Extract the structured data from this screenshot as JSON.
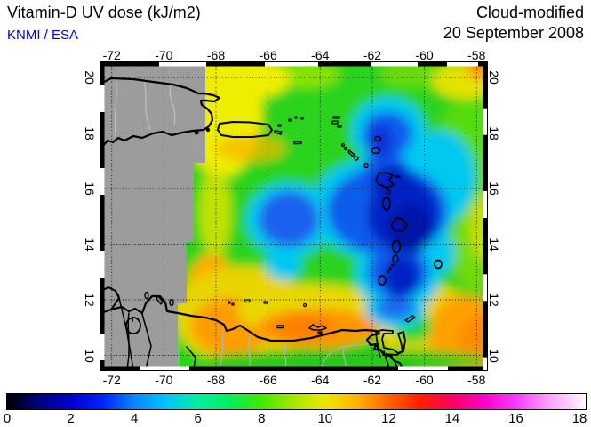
{
  "header": {
    "title": "Vitamin-D UV dose (kJ/m2)",
    "source": "KNMI / ESA",
    "mode": "Cloud-modified",
    "date": "20 September 2008"
  },
  "map": {
    "lon_labels": [
      "-72",
      "-70",
      "-68",
      "-66",
      "-64",
      "-62",
      "-60",
      "-58"
    ],
    "lat_labels": [
      "20",
      "18",
      "16",
      "14",
      "12",
      "10"
    ],
    "nodata_color": "#9c9c9c",
    "coast_color": "#000000",
    "river_color": "#b4b4b4",
    "grid_style": "dotted"
  },
  "colorbar": {
    "labels": [
      "0",
      "2",
      "4",
      "6",
      "8",
      "10",
      "12",
      "14",
      "16",
      "18"
    ],
    "min": 0,
    "max": 18,
    "stops": [
      {
        "value": 0,
        "color": "#000000"
      },
      {
        "value": 1,
        "color": "#000080"
      },
      {
        "value": 2,
        "color": "#0000cd"
      },
      {
        "value": 3,
        "color": "#0022ff"
      },
      {
        "value": 4,
        "color": "#0a86ff"
      },
      {
        "value": 5,
        "color": "#00c4ff"
      },
      {
        "value": 6,
        "color": "#00f0a0"
      },
      {
        "value": 7,
        "color": "#00f05c"
      },
      {
        "value": 8,
        "color": "#44e800"
      },
      {
        "value": 9,
        "color": "#a4e800"
      },
      {
        "value": 10,
        "color": "#ece800"
      },
      {
        "value": 11,
        "color": "#ffb400"
      },
      {
        "value": 12,
        "color": "#ff6400"
      },
      {
        "value": 13,
        "color": "#ff1e00"
      },
      {
        "value": 14,
        "color": "#ff0064"
      },
      {
        "value": 15,
        "color": "#ff00c8"
      },
      {
        "value": 16,
        "color": "#f53cff"
      },
      {
        "value": 17,
        "color": "#ff9cff"
      },
      {
        "value": 18,
        "color": "#ffe8ff"
      }
    ]
  },
  "chart_data": {
    "type": "heatmap",
    "title": "Vitamin-D UV dose (kJ/m2)",
    "subtitle": "Cloud-modified",
    "date": "20 September 2008",
    "units": "kJ/m2",
    "lon_range": [
      -72.4,
      -57.6
    ],
    "lat_range": [
      9.5,
      20.5
    ],
    "colorbar_range": [
      0,
      18
    ],
    "no_data_region": "west of approximately -68.4 longitude (gray)",
    "grid_lons": [
      -72,
      -70,
      -68,
      -66,
      -64,
      -62,
      -60,
      -58
    ],
    "grid_lats": [
      20,
      18,
      16,
      14,
      12,
      10
    ],
    "estimated_values_by_lat": [
      {
        "lat": 20,
        "values": [
          null,
          null,
          9,
          8,
          8,
          8,
          9,
          10
        ]
      },
      {
        "lat": 18,
        "values": [
          null,
          null,
          9,
          9,
          7,
          4,
          7,
          8
        ]
      },
      {
        "lat": 16,
        "values": [
          null,
          null,
          10,
          6,
          3,
          2,
          6,
          8
        ]
      },
      {
        "lat": 14,
        "values": [
          null,
          null,
          10,
          6,
          5,
          2,
          7,
          9
        ]
      },
      {
        "lat": 12,
        "values": [
          null,
          null,
          10,
          9,
          8,
          4,
          9,
          10
        ]
      },
      {
        "lat": 10,
        "values": [
          null,
          null,
          9,
          10,
          8,
          8,
          10,
          10
        ]
      }
    ],
    "features": [
      {
        "name": "low-dose cloud region",
        "lon": -62.5,
        "lat": 15.5,
        "approx_value": 2
      },
      {
        "name": "secondary low-dose lobe",
        "lon": -65.7,
        "lat": 15.0,
        "approx_value": 4
      },
      {
        "name": "high-dose band along Venezuelan coast",
        "lat": 11.2,
        "approx_value": 11
      },
      {
        "name": "high-dose region southeast corner",
        "lon": -58.5,
        "lat": 10.5,
        "approx_value": 11
      }
    ]
  }
}
